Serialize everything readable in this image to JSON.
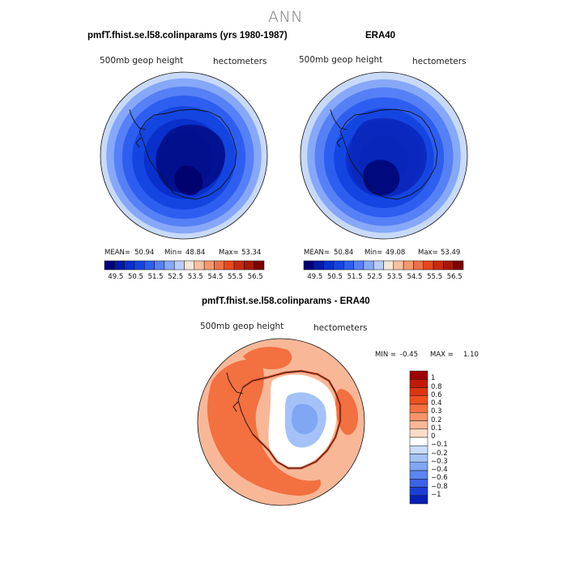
{
  "page": {
    "title": "ANN"
  },
  "panels": [
    {
      "title": "pmfT.fhist.se.l58.colinparams (yrs 1980-1987)",
      "variable": "500mb geop height",
      "units": "hectometers",
      "stats": {
        "mean_label": "MEAN=",
        "mean": "50.94",
        "min_label": "Min=",
        "min": "48.84",
        "max_label": "Max=",
        "max": "53.34"
      }
    },
    {
      "title": "ERA40",
      "variable": "500mb geop height",
      "units": "hectometers",
      "stats": {
        "mean_label": "MEAN=",
        "mean": "50.84",
        "min_label": "Min=",
        "min": "49.08",
        "max_label": "Max=",
        "max": "53.49"
      }
    },
    {
      "title": "pmfT.fhist.se.l58.colinparams - ERA40",
      "variable": "500mb geop height",
      "units": "hectometers",
      "stats": {
        "min_label": "MIN =",
        "min": "-0.45",
        "max_label": "MAX =",
        "max": "1.10"
      }
    }
  ],
  "chart_data": [
    {
      "type": "heatmap",
      "title": "pmfT.fhist.se.l58.colinparams (yrs 1980-1987)",
      "projection": "south-polar-stereographic",
      "colorbar": {
        "orientation": "horizontal",
        "tick_labels": [
          "49.5",
          "50.5",
          "51.5",
          "52.5",
          "53.5",
          "54.5",
          "55.5",
          "56.5"
        ],
        "levels": [
          49.5,
          50,
          50.5,
          51,
          51.5,
          52,
          52.5,
          53,
          53.5,
          54,
          54.5,
          55,
          55.5,
          56,
          56.5
        ],
        "colors": [
          "#00007a",
          "#0418a8",
          "#0a30cc",
          "#1545e0",
          "#2e5ef0",
          "#5680f5",
          "#87a8f8",
          "#b8cdfa",
          "#f6e6d8",
          "#f7c0a2",
          "#f49870",
          "#ef7046",
          "#e5481f",
          "#c82a0e",
          "#a81806",
          "#7d0000"
        ]
      },
      "field_rings": [
        {
          "radius_frac": 1.0,
          "color": "#c8daf8"
        },
        {
          "radius_frac": 0.93,
          "color": "#87a8f8"
        },
        {
          "radius_frac": 0.84,
          "color": "#5680f5"
        },
        {
          "radius_frac": 0.74,
          "color": "#2e5ef0"
        },
        {
          "radius_frac": 0.62,
          "color": "#1545e0"
        },
        {
          "radius_frac": 0.48,
          "color": "#0a30cc"
        },
        {
          "radius_frac": 0.34,
          "color": "#0418a8"
        }
      ],
      "mean": 50.94,
      "min": 48.84,
      "max": 53.34
    },
    {
      "type": "heatmap",
      "title": "ERA40",
      "projection": "south-polar-stereographic",
      "colorbar": {
        "orientation": "horizontal",
        "tick_labels": [
          "49.5",
          "50.5",
          "51.5",
          "52.5",
          "53.5",
          "54.5",
          "55.5",
          "56.5"
        ],
        "levels": [
          49.5,
          50,
          50.5,
          51,
          51.5,
          52,
          52.5,
          53,
          53.5,
          54,
          54.5,
          55,
          55.5,
          56,
          56.5
        ],
        "colors": [
          "#00007a",
          "#0418a8",
          "#0a30cc",
          "#1545e0",
          "#2e5ef0",
          "#5680f5",
          "#87a8f8",
          "#b8cdfa",
          "#f6e6d8",
          "#f7c0a2",
          "#f49870",
          "#ef7046",
          "#e5481f",
          "#c82a0e",
          "#a81806",
          "#7d0000"
        ]
      },
      "field_rings": [
        {
          "radius_frac": 1.0,
          "color": "#c8daf8"
        },
        {
          "radius_frac": 0.92,
          "color": "#87a8f8"
        },
        {
          "radius_frac": 0.83,
          "color": "#5680f5"
        },
        {
          "radius_frac": 0.72,
          "color": "#2e5ef0"
        },
        {
          "radius_frac": 0.6,
          "color": "#1545e0"
        },
        {
          "radius_frac": 0.46,
          "color": "#0a30cc"
        },
        {
          "radius_frac": 0.3,
          "color": "#0418a8"
        }
      ],
      "mean": 50.84,
      "min": 49.08,
      "max": 53.49
    },
    {
      "type": "heatmap",
      "title": "pmfT.fhist.se.l58.colinparams - ERA40",
      "projection": "south-polar-stereographic",
      "colorbar": {
        "orientation": "vertical",
        "tick_labels": [
          "1",
          "0.8",
          "0.6",
          "0.4",
          "0.3",
          "0.2",
          "0.1",
          "0",
          "−0.1",
          "−0.2",
          "−0.3",
          "−0.4",
          "−0.6",
          "−0.8",
          "−1"
        ],
        "colors": [
          "#9e0000",
          "#c21a06",
          "#dc3511",
          "#ee5020",
          "#f37040",
          "#f69468",
          "#f8b898",
          "#fadcc8",
          "#ffffff",
          "#c8dcfa",
          "#a4c2f8",
          "#80a6f4",
          "#5a86ee",
          "#3a62e4",
          "#1c3ed6",
          "#0820b4"
        ]
      },
      "min": -0.45,
      "max": 1.1
    }
  ]
}
